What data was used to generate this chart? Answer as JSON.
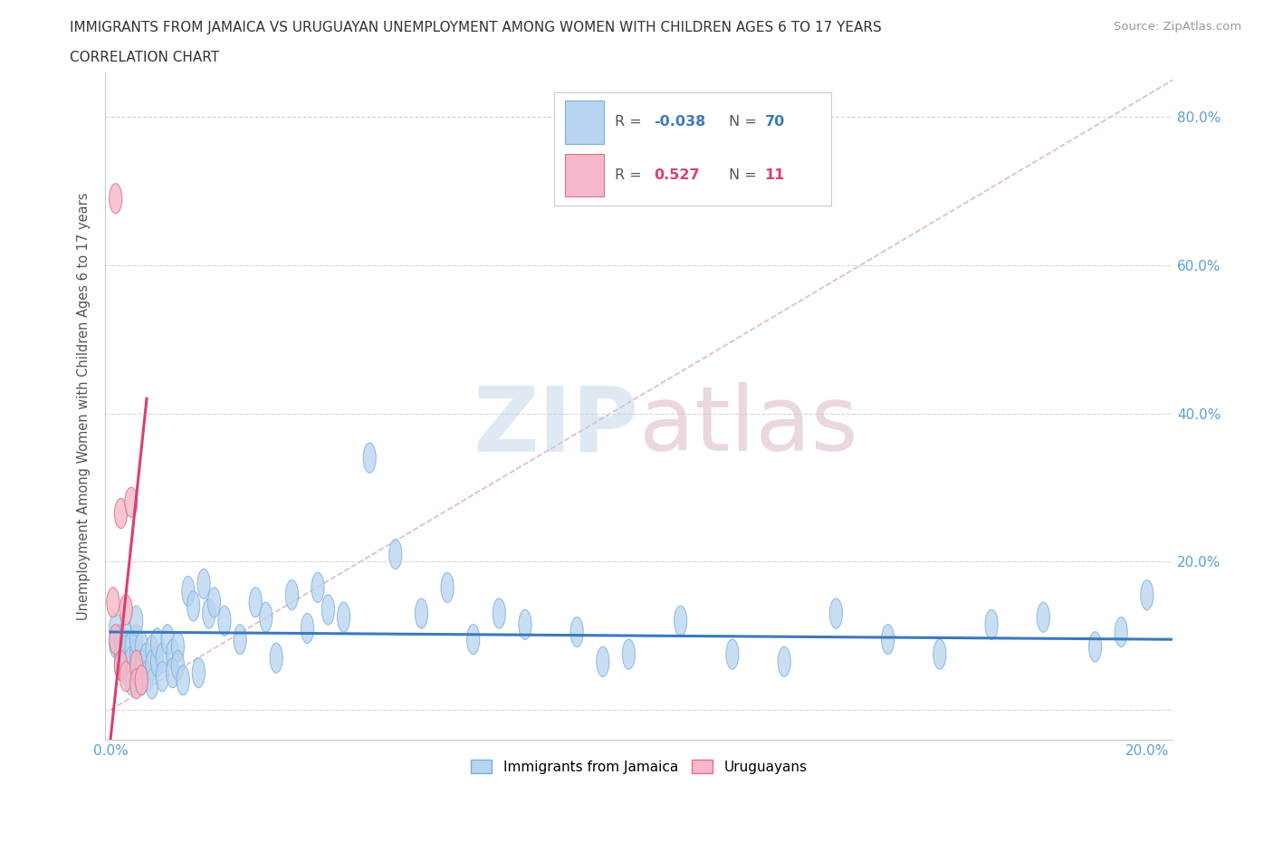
{
  "title_line1": "IMMIGRANTS FROM JAMAICA VS URUGUAYAN UNEMPLOYMENT AMONG WOMEN WITH CHILDREN AGES 6 TO 17 YEARS",
  "title_line2": "CORRELATION CHART",
  "source_text": "Source: ZipAtlas.com",
  "ylabel": "Unemployment Among Women with Children Ages 6 to 17 years",
  "xlim": [
    -0.001,
    0.205
  ],
  "ylim": [
    -0.04,
    0.86
  ],
  "color_jamaica": "#b8d4f0",
  "color_uruguay": "#f5b8c8",
  "color_jamaica_edge": "#7aaedd",
  "color_uruguay_edge": "#e0708a",
  "color_jamaica_line": "#3a7abf",
  "color_uruguay_line": "#d94070",
  "color_diag_line": "#e0b0c0",
  "background_color": "#ffffff",
  "grid_color": "#cccccc",
  "watermark_zip": "ZIP",
  "watermark_atlas": "atlas",
  "jamaica_x": [
    0.001,
    0.001,
    0.002,
    0.002,
    0.002,
    0.003,
    0.003,
    0.003,
    0.004,
    0.004,
    0.004,
    0.005,
    0.005,
    0.005,
    0.005,
    0.006,
    0.006,
    0.006,
    0.007,
    0.007,
    0.008,
    0.008,
    0.008,
    0.009,
    0.009,
    0.01,
    0.01,
    0.011,
    0.012,
    0.012,
    0.013,
    0.013,
    0.014,
    0.015,
    0.016,
    0.017,
    0.018,
    0.019,
    0.02,
    0.022,
    0.025,
    0.028,
    0.03,
    0.032,
    0.035,
    0.038,
    0.04,
    0.042,
    0.045,
    0.05,
    0.055,
    0.06,
    0.065,
    0.07,
    0.075,
    0.08,
    0.09,
    0.095,
    0.1,
    0.11,
    0.12,
    0.13,
    0.14,
    0.15,
    0.16,
    0.17,
    0.18,
    0.19,
    0.195,
    0.2
  ],
  "jamaica_y": [
    0.11,
    0.09,
    0.095,
    0.075,
    0.06,
    0.1,
    0.08,
    0.055,
    0.085,
    0.065,
    0.04,
    0.075,
    0.055,
    0.095,
    0.12,
    0.085,
    0.06,
    0.04,
    0.07,
    0.045,
    0.08,
    0.06,
    0.035,
    0.065,
    0.09,
    0.07,
    0.045,
    0.095,
    0.075,
    0.05,
    0.085,
    0.06,
    0.04,
    0.16,
    0.14,
    0.05,
    0.17,
    0.13,
    0.145,
    0.12,
    0.095,
    0.145,
    0.125,
    0.07,
    0.155,
    0.11,
    0.165,
    0.135,
    0.125,
    0.34,
    0.21,
    0.13,
    0.165,
    0.095,
    0.13,
    0.115,
    0.105,
    0.065,
    0.075,
    0.12,
    0.075,
    0.065,
    0.13,
    0.095,
    0.075,
    0.115,
    0.125,
    0.085,
    0.105,
    0.155
  ],
  "uruguay_x": [
    0.0005,
    0.001,
    0.001,
    0.002,
    0.002,
    0.003,
    0.003,
    0.004,
    0.005,
    0.005,
    0.006
  ],
  "uruguay_y": [
    0.145,
    0.69,
    0.095,
    0.265,
    0.06,
    0.135,
    0.045,
    0.28,
    0.06,
    0.035,
    0.04
  ],
  "jamaica_trend_x": [
    0.0,
    0.205
  ],
  "jamaica_trend_y": [
    0.105,
    0.095
  ],
  "uruguay_trend_x": [
    0.0,
    0.007
  ],
  "uruguay_trend_y": [
    -0.04,
    0.42
  ]
}
